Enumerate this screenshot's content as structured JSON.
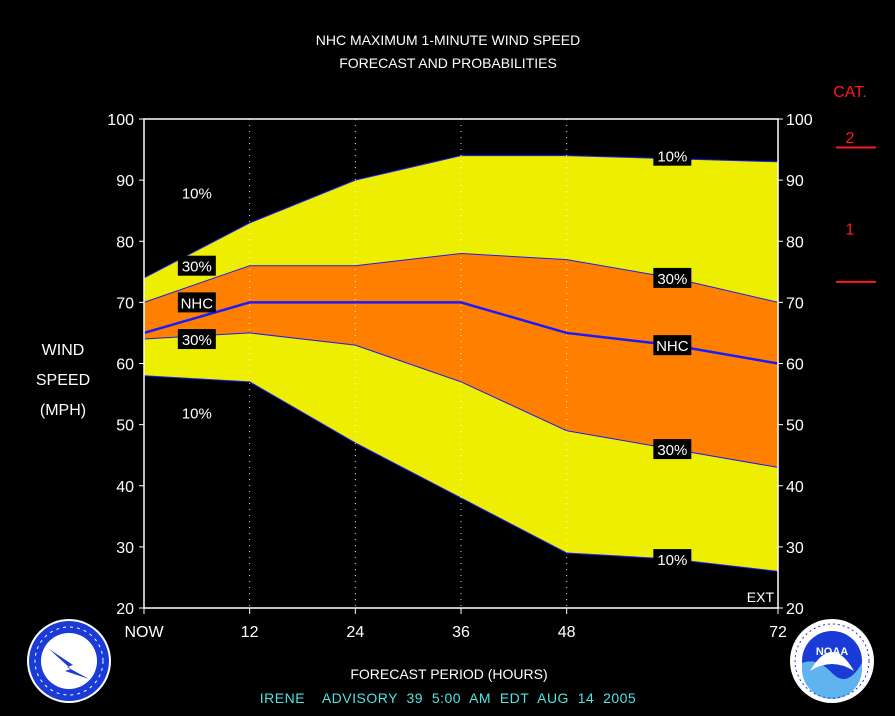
{
  "chart_data": {
    "type": "area",
    "title": [
      "NHC MAXIMUM 1-MINUTE WIND SPEED",
      "FORECAST AND PROBABILITIES"
    ],
    "ylabel": [
      "WIND",
      "SPEED",
      "(MPH)"
    ],
    "xlabel": "FORECAST PERIOD (HOURS)",
    "ylim": [
      20,
      100
    ],
    "xlim": [
      0,
      72
    ],
    "yticks": [
      20,
      30,
      40,
      50,
      60,
      70,
      80,
      90,
      100
    ],
    "xticks": [
      {
        "value": 0,
        "label": "NOW"
      },
      {
        "value": 12,
        "label": "12"
      },
      {
        "value": 24,
        "label": "24"
      },
      {
        "value": 36,
        "label": "36"
      },
      {
        "value": 48,
        "label": "48"
      },
      {
        "value": 72,
        "label": "72"
      }
    ],
    "vertical_dotted_lines_at": [
      12,
      24,
      36,
      48
    ],
    "ext_label": "EXT",
    "x": [
      0,
      12,
      24,
      36,
      48,
      60,
      72
    ],
    "series": [
      {
        "name": "10%",
        "values": [
          74,
          83,
          90,
          94,
          94,
          93.5,
          93
        ],
        "color": "#eeee00"
      },
      {
        "name": "30%",
        "values": [
          70,
          76,
          76,
          78,
          77,
          74,
          70
        ],
        "color": "#ff8000"
      },
      {
        "name": "NHC",
        "values": [
          65,
          70,
          70,
          70,
          65,
          63,
          60
        ],
        "color": "#1a1aff"
      },
      {
        "name": "30%",
        "values": [
          64,
          65,
          63,
          57,
          49,
          46,
          43
        ],
        "color": "#ff8000"
      },
      {
        "name": "10%",
        "values": [
          58,
          57,
          47,
          38,
          29,
          28,
          26
        ],
        "color": "#eeee00"
      }
    ],
    "band_labels": [
      {
        "text": "10%",
        "x": 6,
        "y": 88
      },
      {
        "text": "30%",
        "x": 6,
        "y": 76
      },
      {
        "text": "NHC",
        "x": 6,
        "y": 70
      },
      {
        "text": "30%",
        "x": 6,
        "y": 64
      },
      {
        "text": "10%",
        "x": 6,
        "y": 52
      },
      {
        "text": "10%",
        "x": 60,
        "y": 94
      },
      {
        "text": "30%",
        "x": 60,
        "y": 74
      },
      {
        "text": "NHC",
        "x": 60,
        "y": 63
      },
      {
        "text": "30%",
        "x": 60,
        "y": 46
      },
      {
        "text": "10%",
        "x": 60,
        "y": 28
      }
    ],
    "category_scale": {
      "title": "CAT.",
      "labels": [
        {
          "text": "2",
          "y": 100
        },
        {
          "text": "1",
          "y": 85
        }
      ],
      "thresholds": [
        96,
        74
      ]
    },
    "grid": false
  },
  "footer": "IRENE    ADVISORY  39  5:00  AM  EDT  AUG  14  2005",
  "colors": {
    "background": "#000000",
    "outer_band": "#eeee00",
    "inner_band": "#ff8000",
    "nhc_line": "#1a1aff",
    "category": "#ff1a1a",
    "footer": "#4fe3e3"
  },
  "logos": {
    "left": "NATIONAL WEATHER SERVICE",
    "right": "NOAA"
  }
}
